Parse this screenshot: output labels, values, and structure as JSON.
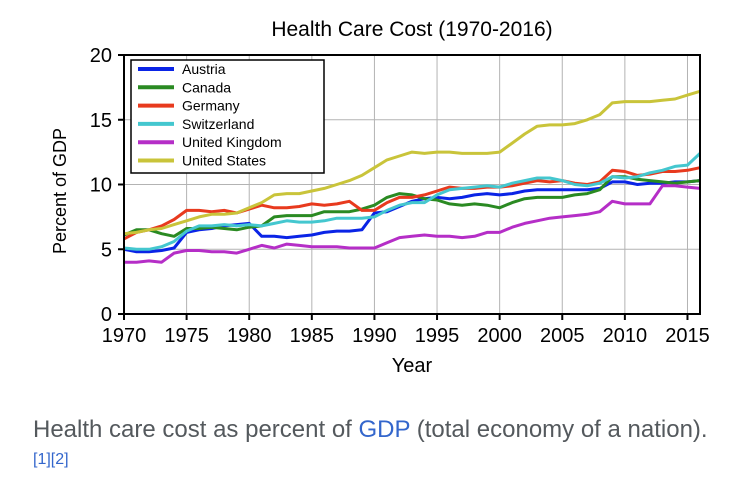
{
  "chart_data": {
    "type": "line",
    "title": "Health Care Cost  (1970-2016)",
    "xlabel": "Year",
    "ylabel": "Percent of GDP",
    "xlim": [
      1970,
      2016
    ],
    "ylim": [
      0,
      20
    ],
    "xticks": [
      "1970",
      "1975",
      "1980",
      "1985",
      "1990",
      "1995",
      "2000",
      "2005",
      "2010",
      "2015"
    ],
    "yticks": [
      "0",
      "5",
      "10",
      "15",
      "20"
    ],
    "grid": true,
    "legend_position": "top-left",
    "series": [
      {
        "name": "Austria",
        "color": "#0a24e6",
        "x": [
          1970,
          1971,
          1972,
          1973,
          1974,
          1975,
          1976,
          1977,
          1978,
          1979,
          1980,
          1981,
          1982,
          1983,
          1984,
          1985,
          1986,
          1987,
          1988,
          1989,
          1990,
          1991,
          1992,
          1993,
          1994,
          1995,
          1996,
          1997,
          1998,
          1999,
          2000,
          2001,
          2002,
          2003,
          2004,
          2005,
          2006,
          2007,
          2008,
          2009,
          2010,
          2011,
          2012,
          2013,
          2014,
          2015,
          2016
        ],
        "values": [
          5.0,
          4.8,
          4.8,
          4.9,
          5.1,
          6.3,
          6.5,
          6.6,
          6.8,
          6.9,
          7.0,
          6.0,
          6.0,
          5.9,
          6.0,
          6.1,
          6.3,
          6.4,
          6.4,
          6.5,
          7.8,
          7.9,
          8.3,
          8.7,
          8.9,
          9.0,
          8.9,
          9.0,
          9.2,
          9.3,
          9.2,
          9.3,
          9.5,
          9.6,
          9.6,
          9.6,
          9.6,
          9.6,
          9.7,
          10.2,
          10.2,
          10.0,
          10.1,
          10.1,
          10.2,
          10.2,
          10.3
        ]
      },
      {
        "name": "Canada",
        "color": "#2a8a22",
        "x": [
          1970,
          1971,
          1972,
          1973,
          1974,
          1975,
          1976,
          1977,
          1978,
          1979,
          1980,
          1981,
          1982,
          1983,
          1984,
          1985,
          1986,
          1987,
          1988,
          1989,
          1990,
          1991,
          1992,
          1993,
          1994,
          1995,
          1996,
          1997,
          1998,
          1999,
          2000,
          2001,
          2002,
          2003,
          2004,
          2005,
          2006,
          2007,
          2008,
          2009,
          2010,
          2011,
          2012,
          2013,
          2014,
          2015,
          2016
        ],
        "values": [
          6.1,
          6.5,
          6.5,
          6.2,
          6.0,
          6.6,
          6.6,
          6.7,
          6.6,
          6.5,
          6.7,
          6.8,
          7.5,
          7.6,
          7.6,
          7.6,
          7.9,
          7.9,
          7.9,
          8.1,
          8.4,
          9.0,
          9.3,
          9.2,
          8.9,
          8.8,
          8.5,
          8.4,
          8.5,
          8.4,
          8.2,
          8.6,
          8.9,
          9.0,
          9.0,
          9.0,
          9.2,
          9.3,
          9.6,
          10.6,
          10.6,
          10.4,
          10.3,
          10.2,
          10.1,
          10.2,
          10.3
        ]
      },
      {
        "name": "Germany",
        "color": "#e83a1e",
        "x": [
          1970,
          1971,
          1972,
          1973,
          1974,
          1975,
          1976,
          1977,
          1978,
          1979,
          1980,
          1981,
          1982,
          1983,
          1984,
          1985,
          1986,
          1987,
          1988,
          1989,
          1990,
          1991,
          1992,
          1993,
          1994,
          1995,
          1996,
          1997,
          1998,
          1999,
          2000,
          2001,
          2002,
          2003,
          2004,
          2005,
          2006,
          2007,
          2008,
          2009,
          2010,
          2011,
          2012,
          2013,
          2014,
          2015,
          2016
        ],
        "values": [
          5.8,
          6.3,
          6.5,
          6.8,
          7.3,
          8.0,
          8.0,
          7.9,
          8.0,
          7.8,
          8.1,
          8.4,
          8.2,
          8.2,
          8.3,
          8.5,
          8.4,
          8.5,
          8.7,
          8.0,
          8.0,
          8.6,
          9.0,
          9.0,
          9.2,
          9.5,
          9.8,
          9.7,
          9.7,
          9.8,
          9.8,
          9.9,
          10.1,
          10.3,
          10.2,
          10.3,
          10.1,
          10.0,
          10.2,
          11.1,
          11.0,
          10.7,
          10.8,
          11.0,
          11.0,
          11.1,
          11.3
        ]
      },
      {
        "name": "Switzerland",
        "color": "#44c7cf",
        "x": [
          1970,
          1971,
          1972,
          1973,
          1974,
          1975,
          1976,
          1977,
          1978,
          1979,
          1980,
          1981,
          1982,
          1983,
          1984,
          1985,
          1986,
          1987,
          1988,
          1989,
          1990,
          1991,
          1992,
          1993,
          1994,
          1995,
          1996,
          1997,
          1998,
          1999,
          2000,
          2001,
          2002,
          2003,
          2004,
          2005,
          2006,
          2007,
          2008,
          2009,
          2010,
          2011,
          2012,
          2013,
          2014,
          2015,
          2016
        ],
        "values": [
          5.1,
          5.0,
          5.0,
          5.2,
          5.6,
          6.4,
          6.8,
          6.8,
          6.9,
          6.8,
          6.9,
          6.8,
          7.0,
          7.2,
          7.1,
          7.1,
          7.2,
          7.4,
          7.4,
          7.4,
          7.5,
          8.0,
          8.4,
          8.6,
          8.6,
          9.2,
          9.6,
          9.7,
          9.8,
          9.9,
          9.8,
          10.1,
          10.3,
          10.5,
          10.5,
          10.3,
          10.0,
          9.9,
          10.1,
          10.6,
          10.5,
          10.6,
          10.9,
          11.1,
          11.4,
          11.5,
          12.4
        ]
      },
      {
        "name": "United Kingdom",
        "color": "#b52ec7",
        "x": [
          1970,
          1971,
          1972,
          1973,
          1974,
          1975,
          1976,
          1977,
          1978,
          1979,
          1980,
          1981,
          1982,
          1983,
          1984,
          1985,
          1986,
          1987,
          1988,
          1989,
          1990,
          1991,
          1992,
          1993,
          1994,
          1995,
          1996,
          1997,
          1998,
          1999,
          2000,
          2001,
          2002,
          2003,
          2004,
          2005,
          2006,
          2007,
          2008,
          2009,
          2010,
          2011,
          2012,
          2013,
          2014,
          2015,
          2016
        ],
        "values": [
          4.0,
          4.0,
          4.1,
          4.0,
          4.7,
          4.9,
          4.9,
          4.8,
          4.8,
          4.7,
          5.0,
          5.3,
          5.1,
          5.4,
          5.3,
          5.2,
          5.2,
          5.2,
          5.1,
          5.1,
          5.1,
          5.5,
          5.9,
          6.0,
          6.1,
          6.0,
          6.0,
          5.9,
          6.0,
          6.3,
          6.3,
          6.7,
          7.0,
          7.2,
          7.4,
          7.5,
          7.6,
          7.7,
          7.9,
          8.7,
          8.5,
          8.5,
          8.5,
          9.9,
          9.9,
          9.8,
          9.7
        ]
      },
      {
        "name": "United States",
        "color": "#c9c43a",
        "x": [
          1970,
          1971,
          1972,
          1973,
          1974,
          1975,
          1976,
          1977,
          1978,
          1979,
          1980,
          1981,
          1982,
          1983,
          1984,
          1985,
          1986,
          1987,
          1988,
          1989,
          1990,
          1991,
          1992,
          1993,
          1994,
          1995,
          1996,
          1997,
          1998,
          1999,
          2000,
          2001,
          2002,
          2003,
          2004,
          2005,
          2006,
          2007,
          2008,
          2009,
          2010,
          2011,
          2012,
          2013,
          2014,
          2015,
          2016
        ],
        "values": [
          6.2,
          6.3,
          6.5,
          6.6,
          6.9,
          7.2,
          7.5,
          7.7,
          7.7,
          7.8,
          8.2,
          8.6,
          9.2,
          9.3,
          9.3,
          9.5,
          9.7,
          10.0,
          10.3,
          10.7,
          11.3,
          11.9,
          12.2,
          12.5,
          12.4,
          12.5,
          12.5,
          12.4,
          12.4,
          12.4,
          12.5,
          13.2,
          13.9,
          14.5,
          14.6,
          14.6,
          14.7,
          15.0,
          15.4,
          16.3,
          16.4,
          16.4,
          16.4,
          16.5,
          16.6,
          16.9,
          17.2
        ]
      }
    ]
  },
  "caption": {
    "text_before": "Health care cost as percent of ",
    "link": "GDP",
    "text_after": " (total economy of a nation).",
    "ref1": "[1]",
    "ref2": "[2]"
  }
}
